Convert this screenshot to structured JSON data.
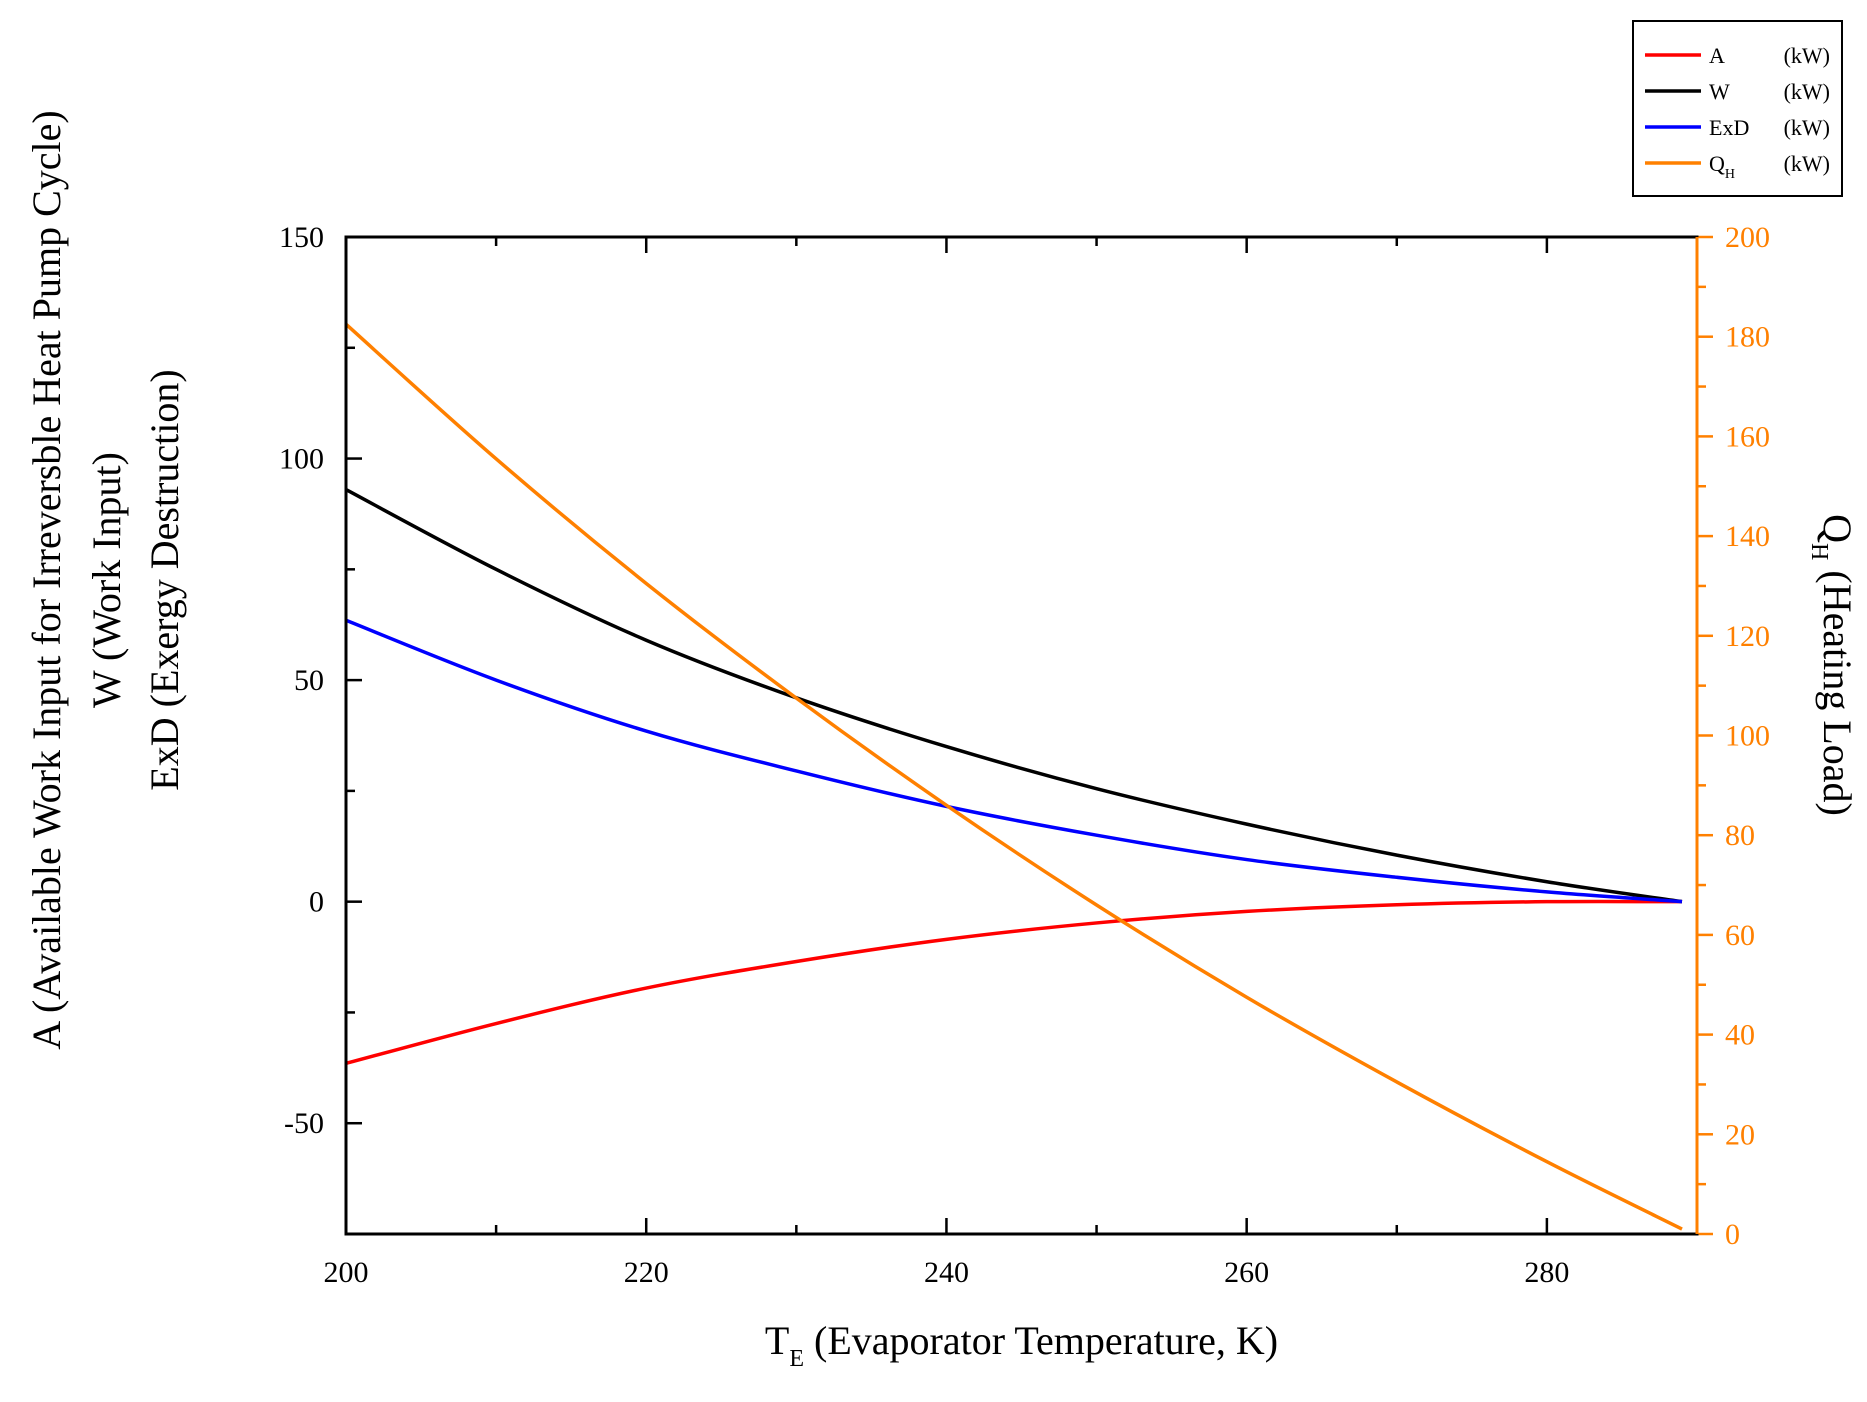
{
  "chart_data": {
    "type": "line",
    "x": [
      200,
      210,
      220,
      230,
      240,
      250,
      260,
      270,
      280,
      289
    ],
    "xlim": [
      200,
      290
    ],
    "xticks": [
      200,
      220,
      240,
      260,
      280
    ],
    "xlabel": {
      "main": "T",
      "sub": "E",
      "rest": " (Evaporator Temperature, K)"
    },
    "left_axis": {
      "ylim": [
        -75,
        150
      ],
      "ticks": [
        -50,
        0,
        50,
        100,
        150
      ],
      "label_lines": [
        "A (Available Work Input for Irreversble Heat Pump Cycle)",
        "W  (Work Input)",
        "ExD (Exergy Destruction)"
      ]
    },
    "right_axis": {
      "ylim": [
        0,
        200
      ],
      "ticks": [
        0,
        20,
        40,
        60,
        80,
        100,
        120,
        140,
        160,
        180,
        200
      ],
      "label": {
        "main": "Q",
        "sub": "H",
        "rest": " (Heating Load)"
      },
      "color": "#ff8000"
    },
    "series": [
      {
        "name": "A",
        "legend_main": "A",
        "legend_sub": "",
        "unit": "(kW)",
        "axis": "left",
        "color": "#ff0000",
        "values": [
          -36.5,
          -27.5,
          -19.5,
          -13.5,
          -8.5,
          -4.8,
          -2.2,
          -0.7,
          0,
          0
        ]
      },
      {
        "name": "W",
        "legend_main": "W",
        "legend_sub": "",
        "unit": "(kW)",
        "axis": "left",
        "color": "#000000",
        "values": [
          93,
          75,
          59,
          46,
          35,
          25.5,
          17.5,
          10.5,
          4.5,
          0
        ]
      },
      {
        "name": "ExD",
        "legend_main": "ExD",
        "legend_sub": "",
        "unit": "(kW)",
        "axis": "left",
        "color": "#0000ff",
        "values": [
          63.5,
          50,
          38.5,
          29.5,
          21.5,
          15,
          9.5,
          5.5,
          2.2,
          0
        ]
      },
      {
        "name": "QH",
        "legend_main": "Q",
        "legend_sub": "H",
        "unit": "(kW)",
        "axis": "right",
        "color": "#ff8000",
        "values": [
          182.5,
          155.5,
          130.5,
          107.5,
          86,
          66,
          47.5,
          30.5,
          14.5,
          1
        ]
      }
    ]
  }
}
